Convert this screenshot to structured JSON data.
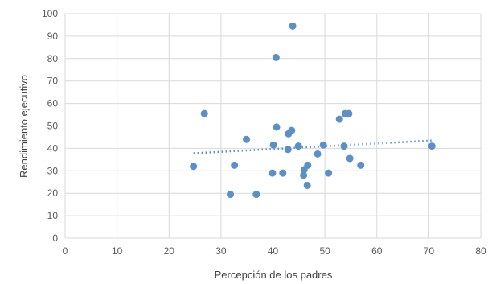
{
  "chart_data": {
    "type": "scatter",
    "title": "",
    "xlabel": "Percepción de los padres",
    "ylabel": "Rendimiento ejecutivo",
    "xlim": [
      0,
      80
    ],
    "ylim": [
      0,
      100
    ],
    "x_ticks": [
      "0",
      "10",
      "20",
      "30",
      "40",
      "50",
      "60",
      "70",
      "80"
    ],
    "y_ticks": [
      "0",
      "10",
      "20",
      "30",
      "40",
      "50",
      "60",
      "70",
      "80",
      "90",
      "100"
    ],
    "grid": true,
    "legend": "none",
    "colors": {
      "points": "#5b8fc7",
      "trendline": "#5b8fc7"
    },
    "series": [
      {
        "points": [
          [
            24.7,
            32
          ],
          [
            26.8,
            55.5
          ],
          [
            31.8,
            19.5
          ],
          [
            32.6,
            32.5
          ],
          [
            34.9,
            44
          ],
          [
            36.8,
            19.5
          ],
          [
            39.9,
            29
          ],
          [
            40.1,
            41.5
          ],
          [
            40.6,
            80.5
          ],
          [
            40.7,
            49.5
          ],
          [
            41.9,
            29
          ],
          [
            42.9,
            39.5
          ],
          [
            43.0,
            46.5
          ],
          [
            43.6,
            48
          ],
          [
            43.8,
            94.5
          ],
          [
            44.9,
            41
          ],
          [
            45.9,
            28
          ],
          [
            46.0,
            30.5
          ],
          [
            46.6,
            23.5
          ],
          [
            46.7,
            32.5
          ],
          [
            48.6,
            37.5
          ],
          [
            49.7,
            41.5
          ],
          [
            50.7,
            29
          ],
          [
            52.8,
            53
          ],
          [
            53.7,
            41
          ],
          [
            53.9,
            55.5
          ],
          [
            54.6,
            55.5
          ],
          [
            54.8,
            35.5
          ],
          [
            56.9,
            32.5
          ],
          [
            70.6,
            41
          ]
        ]
      }
    ],
    "trendline": {
      "style": "dotted",
      "x": [
        24.7,
        70.6
      ],
      "y": [
        37.8,
        43.5
      ]
    }
  }
}
